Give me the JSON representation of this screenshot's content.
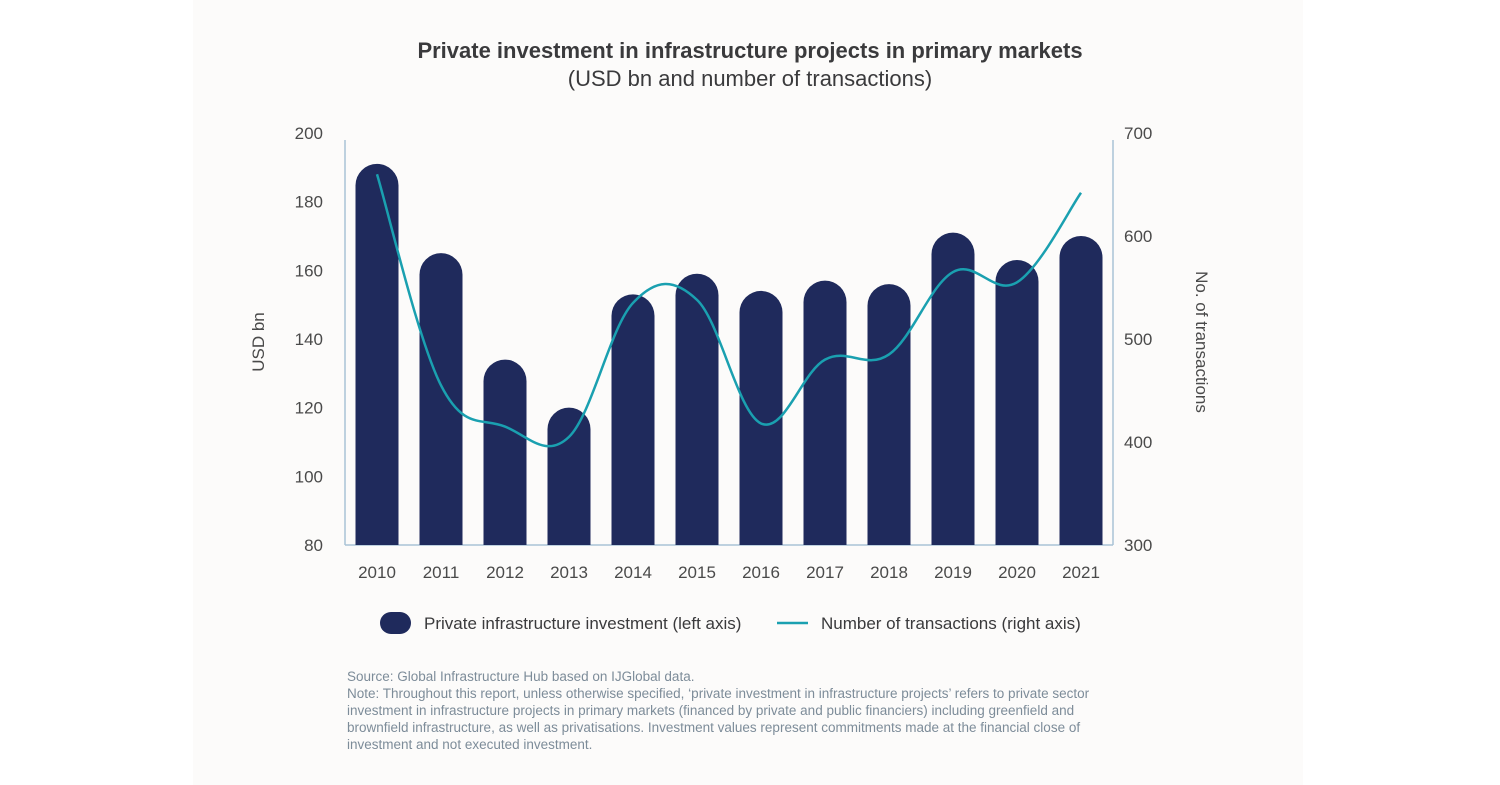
{
  "colors": {
    "bar": "#1f2a5c",
    "line": "#1aa0b0",
    "axis": "#a9c3d6",
    "page_bg": "#fcfbfa"
  },
  "chart_data": {
    "type": "bar",
    "title": "Private investment in infrastructure projects in primary markets",
    "subtitle": "(USD bn and number of transactions)",
    "categories": [
      "2010",
      "2011",
      "2012",
      "2013",
      "2014",
      "2015",
      "2016",
      "2017",
      "2018",
      "2019",
      "2020",
      "2021"
    ],
    "series": [
      {
        "name": "Private infrastructure investment (left axis)",
        "kind": "bar",
        "axis": "left",
        "values": [
          191,
          165,
          134,
          120,
          153,
          159,
          154,
          157,
          156,
          171,
          163,
          170
        ]
      },
      {
        "name": "Number of transactions (right axis)",
        "kind": "line",
        "axis": "right",
        "values": [
          660,
          455,
          415,
          405,
          535,
          538,
          418,
          480,
          485,
          565,
          555,
          642
        ]
      }
    ],
    "ylabel": "USD bn",
    "y2label": "No. of transactions",
    "ylim": [
      80,
      200
    ],
    "y2lim": [
      300,
      700
    ],
    "yticks": [
      "200",
      "180",
      "160",
      "140",
      "120",
      "100",
      "80"
    ],
    "y2ticks": [
      "700",
      "600",
      "500",
      "400",
      "300"
    ],
    "grid": false,
    "legend_position": "bottom"
  },
  "notes": {
    "source": "Source: Global Infrastructure Hub based on IJGlobal data.",
    "note_lines": [
      "Note: Throughout this report, unless otherwise specified, ‘private investment in infrastructure projects’ refers to private sector",
      "investment in infrastructure projects in primary markets (financed by private and public financiers) including greenfield and",
      "brownfield infrastructure, as well as privatisations. Investment values represent commitments made at the financial close of",
      "investment and not executed investment."
    ]
  }
}
